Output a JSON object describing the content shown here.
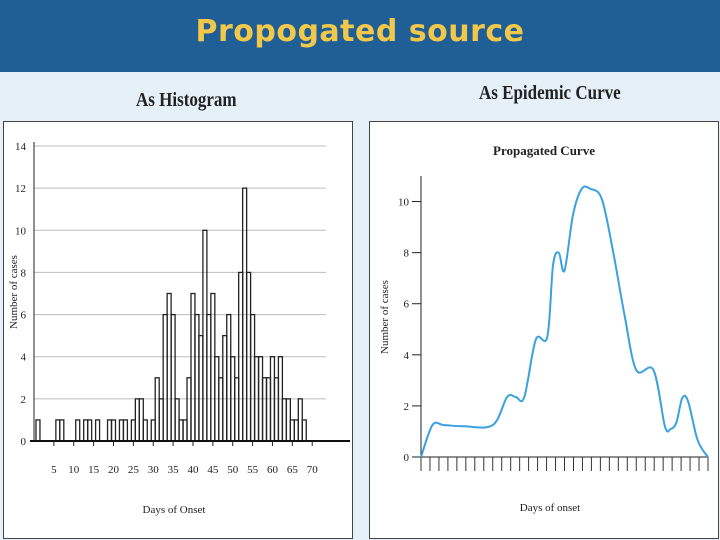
{
  "header": {
    "title": "Propogated source"
  },
  "left_caption": "As Histogram",
  "right_caption": "As Epidemic Curve",
  "colors": {
    "header_bg": "#1f5f96",
    "title_color": "#f2c84b",
    "curve": "#3aa0e0",
    "bars": "#222222"
  },
  "chart_data": [
    {
      "type": "bar",
      "title": "",
      "xlabel": "Days of Onset",
      "ylabel": "Number of cases",
      "ylim": [
        0,
        14
      ],
      "yticks": [
        "0",
        "2",
        "4",
        "6",
        "8",
        "10",
        "12",
        "14"
      ],
      "xtick_labels": [
        "5",
        "10",
        "15",
        "20",
        "25",
        "30",
        "35",
        "40",
        "45",
        "50",
        "55",
        "60",
        "65",
        "70"
      ],
      "xtick_values": [
        5,
        10,
        15,
        20,
        25,
        30,
        35,
        40,
        45,
        50,
        55,
        60,
        65,
        70
      ],
      "xlim": [
        0,
        78
      ],
      "grid": true,
      "day_values": [
        1,
        0,
        0,
        0,
        0,
        1,
        1,
        0,
        0,
        0,
        1,
        0,
        1,
        1,
        0,
        1,
        0,
        0,
        1,
        1,
        0,
        1,
        1,
        0,
        1,
        2,
        2,
        1,
        0,
        1,
        3,
        2,
        6,
        7,
        6,
        2,
        1,
        1,
        3,
        7,
        6,
        5,
        10,
        6,
        7,
        4,
        3,
        5,
        6,
        4,
        3,
        8,
        12,
        8,
        6,
        4,
        4,
        3,
        3,
        4,
        3,
        4,
        2,
        2,
        1,
        1,
        2,
        1
      ]
    },
    {
      "type": "line",
      "title": "Propagated Curve",
      "xlabel": "Days of onset",
      "ylabel": "Number of cases",
      "ylim": [
        0,
        11
      ],
      "yticks": [
        "0",
        "2",
        "4",
        "6",
        "8",
        "10"
      ],
      "ytick_values": [
        0,
        2,
        4,
        6,
        8,
        10
      ],
      "xlim": [
        0,
        100
      ],
      "x_tick_count": 33,
      "grid": false,
      "x": [
        0,
        4,
        8,
        15,
        25,
        30,
        33,
        36,
        40,
        44,
        46,
        48,
        50,
        53,
        56,
        59,
        63,
        67,
        71,
        75,
        81,
        85,
        87,
        89,
        91,
        93,
        96,
        98,
        100
      ],
      "y": [
        0,
        1.25,
        1.25,
        1.2,
        1.25,
        2.35,
        2.35,
        2.35,
        4.6,
        4.7,
        7.5,
        8.0,
        7.3,
        9.5,
        10.5,
        10.5,
        10.1,
        8.0,
        5.5,
        3.4,
        3.4,
        1.2,
        1.1,
        1.35,
        2.3,
        2.2,
        0.8,
        0.3,
        0
      ]
    }
  ]
}
